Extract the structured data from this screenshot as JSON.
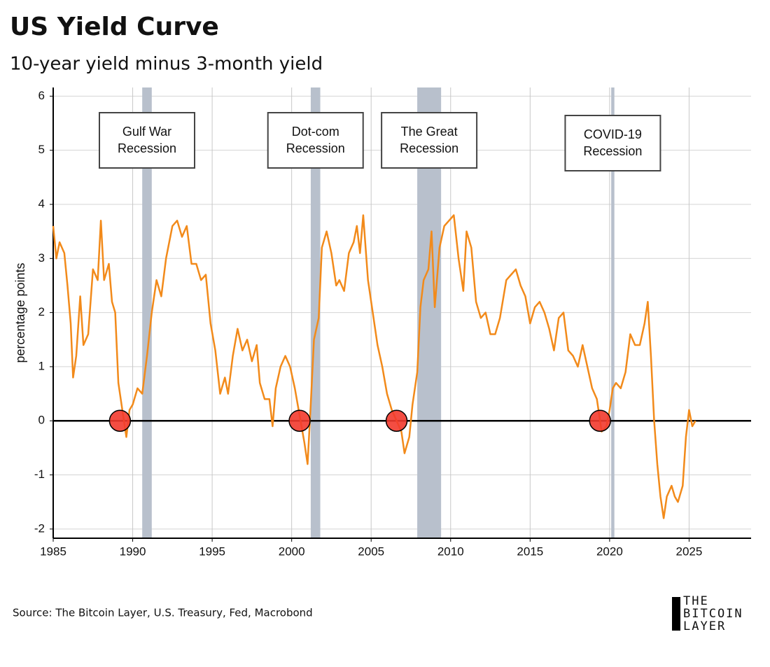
{
  "chart_data": {
    "type": "line",
    "title": "US Yield Curve",
    "subtitle": "10-year yield minus 3-month yield",
    "y_label": "percentage points",
    "source": "Source: The Bitcoin Layer, U.S. Treasury, Fed, Macrobond",
    "xlim": [
      1985,
      2028.9
    ],
    "ylim": [
      -2.17,
      6.16
    ],
    "xticks": [
      1985,
      1990,
      1995,
      2000,
      2005,
      2010,
      2015,
      2020,
      2025
    ],
    "yticks": [
      -2,
      -1,
      0,
      1,
      2,
      3,
      4,
      5,
      6
    ],
    "grid": true,
    "x": [
      1985.0,
      1985.2,
      1985.4,
      1985.7,
      1985.9,
      1986.1,
      1986.25,
      1986.45,
      1986.7,
      1986.9,
      1987.2,
      1987.5,
      1987.8,
      1988.0,
      1988.2,
      1988.5,
      1988.7,
      1988.9,
      1989.1,
      1989.4,
      1989.6,
      1989.8,
      1990.0,
      1990.3,
      1990.6,
      1990.9,
      1991.2,
      1991.5,
      1991.8,
      1992.1,
      1992.5,
      1992.8,
      1993.1,
      1993.4,
      1993.7,
      1994.0,
      1994.3,
      1994.6,
      1994.9,
      1995.2,
      1995.5,
      1995.8,
      1996.0,
      1996.3,
      1996.6,
      1996.9,
      1997.2,
      1997.5,
      1997.8,
      1998.0,
      1998.3,
      1998.6,
      1998.8,
      1999.0,
      1999.3,
      1999.6,
      1999.9,
      2000.2,
      2000.5,
      2000.8,
      2001.0,
      2001.2,
      2001.4,
      2001.7,
      2001.9,
      2002.2,
      2002.5,
      2002.8,
      2003.0,
      2003.3,
      2003.6,
      2003.9,
      2004.1,
      2004.3,
      2004.5,
      2004.8,
      2005.1,
      2005.4,
      2005.7,
      2006.0,
      2006.3,
      2006.6,
      2006.9,
      2007.1,
      2007.4,
      2007.6,
      2007.9,
      2008.1,
      2008.3,
      2008.6,
      2008.8,
      2009.0,
      2009.3,
      2009.6,
      2009.9,
      2010.2,
      2010.5,
      2010.8,
      2011.0,
      2011.3,
      2011.6,
      2011.9,
      2012.2,
      2012.5,
      2012.8,
      2013.1,
      2013.5,
      2013.8,
      2014.1,
      2014.4,
      2014.7,
      2015.0,
      2015.3,
      2015.6,
      2015.9,
      2016.2,
      2016.5,
      2016.8,
      2017.1,
      2017.4,
      2017.7,
      2018.0,
      2018.3,
      2018.6,
      2018.9,
      2019.2,
      2019.5,
      2019.8,
      2020.0,
      2020.2,
      2020.4,
      2020.7,
      2021.0,
      2021.3,
      2021.6,
      2021.9,
      2022.2,
      2022.4,
      2022.6,
      2022.8,
      2023.0,
      2023.2,
      2023.4,
      2023.6,
      2023.9,
      2024.1,
      2024.3,
      2024.6,
      2024.8,
      2025.0,
      2025.2,
      2025.4
    ],
    "series": [
      {
        "color": "#f28a1a",
        "values": [
          3.6,
          3.0,
          3.3,
          3.1,
          2.5,
          1.8,
          0.8,
          1.2,
          2.3,
          1.4,
          1.6,
          2.8,
          2.6,
          3.7,
          2.6,
          2.9,
          2.2,
          2.0,
          0.7,
          0.1,
          -0.3,
          0.2,
          0.3,
          0.6,
          0.5,
          1.2,
          2.0,
          2.6,
          2.3,
          3.0,
          3.6,
          3.7,
          3.4,
          3.6,
          2.9,
          2.9,
          2.6,
          2.7,
          1.8,
          1.3,
          0.5,
          0.8,
          0.5,
          1.2,
          1.7,
          1.3,
          1.5,
          1.1,
          1.4,
          0.7,
          0.4,
          0.4,
          -0.1,
          0.6,
          1.0,
          1.2,
          1.0,
          0.6,
          0.1,
          -0.4,
          -0.8,
          0.3,
          1.5,
          1.9,
          3.2,
          3.5,
          3.1,
          2.5,
          2.6,
          2.4,
          3.1,
          3.3,
          3.6,
          3.1,
          3.8,
          2.6,
          2.0,
          1.4,
          1.0,
          0.5,
          0.2,
          0.0,
          -0.2,
          -0.6,
          -0.3,
          0.3,
          0.9,
          2.1,
          2.6,
          2.8,
          3.5,
          2.1,
          3.2,
          3.6,
          3.7,
          3.8,
          3.0,
          2.4,
          3.5,
          3.2,
          2.2,
          1.9,
          2.0,
          1.6,
          1.6,
          1.9,
          2.6,
          2.7,
          2.8,
          2.5,
          2.3,
          1.8,
          2.1,
          2.2,
          2.0,
          1.7,
          1.3,
          1.9,
          2.0,
          1.3,
          1.2,
          1.0,
          1.4,
          1.0,
          0.6,
          0.4,
          -0.2,
          -0.1,
          0.2,
          0.6,
          0.7,
          0.6,
          0.9,
          1.6,
          1.4,
          1.4,
          1.8,
          2.2,
          1.2,
          0.0,
          -0.8,
          -1.4,
          -1.8,
          -1.4,
          -1.2,
          -1.4,
          -1.5,
          -1.2,
          -0.3,
          0.2,
          -0.1,
          0.0
        ]
      }
    ],
    "recessions": [
      {
        "start": 1990.6,
        "end": 1991.2,
        "label": [
          "Gulf War",
          "Recession"
        ]
      },
      {
        "start": 2001.2,
        "end": 2001.8,
        "label": [
          "Dot-com",
          "Recession"
        ]
      },
      {
        "start": 2007.9,
        "end": 2009.4,
        "label": [
          "The Great",
          "Recession"
        ]
      },
      {
        "start": 2020.1,
        "end": 2020.3,
        "label": [
          "COVID-19",
          "Recession"
        ]
      }
    ],
    "recession_color": "#b8c0cc",
    "inversion_markers": {
      "color": "#f23a2e",
      "x": [
        1989.2,
        2000.5,
        2006.6,
        2019.4
      ],
      "values": [
        0,
        0,
        0,
        0
      ]
    }
  },
  "logo": [
    "THE",
    "BITCOIN",
    "LAYER"
  ]
}
